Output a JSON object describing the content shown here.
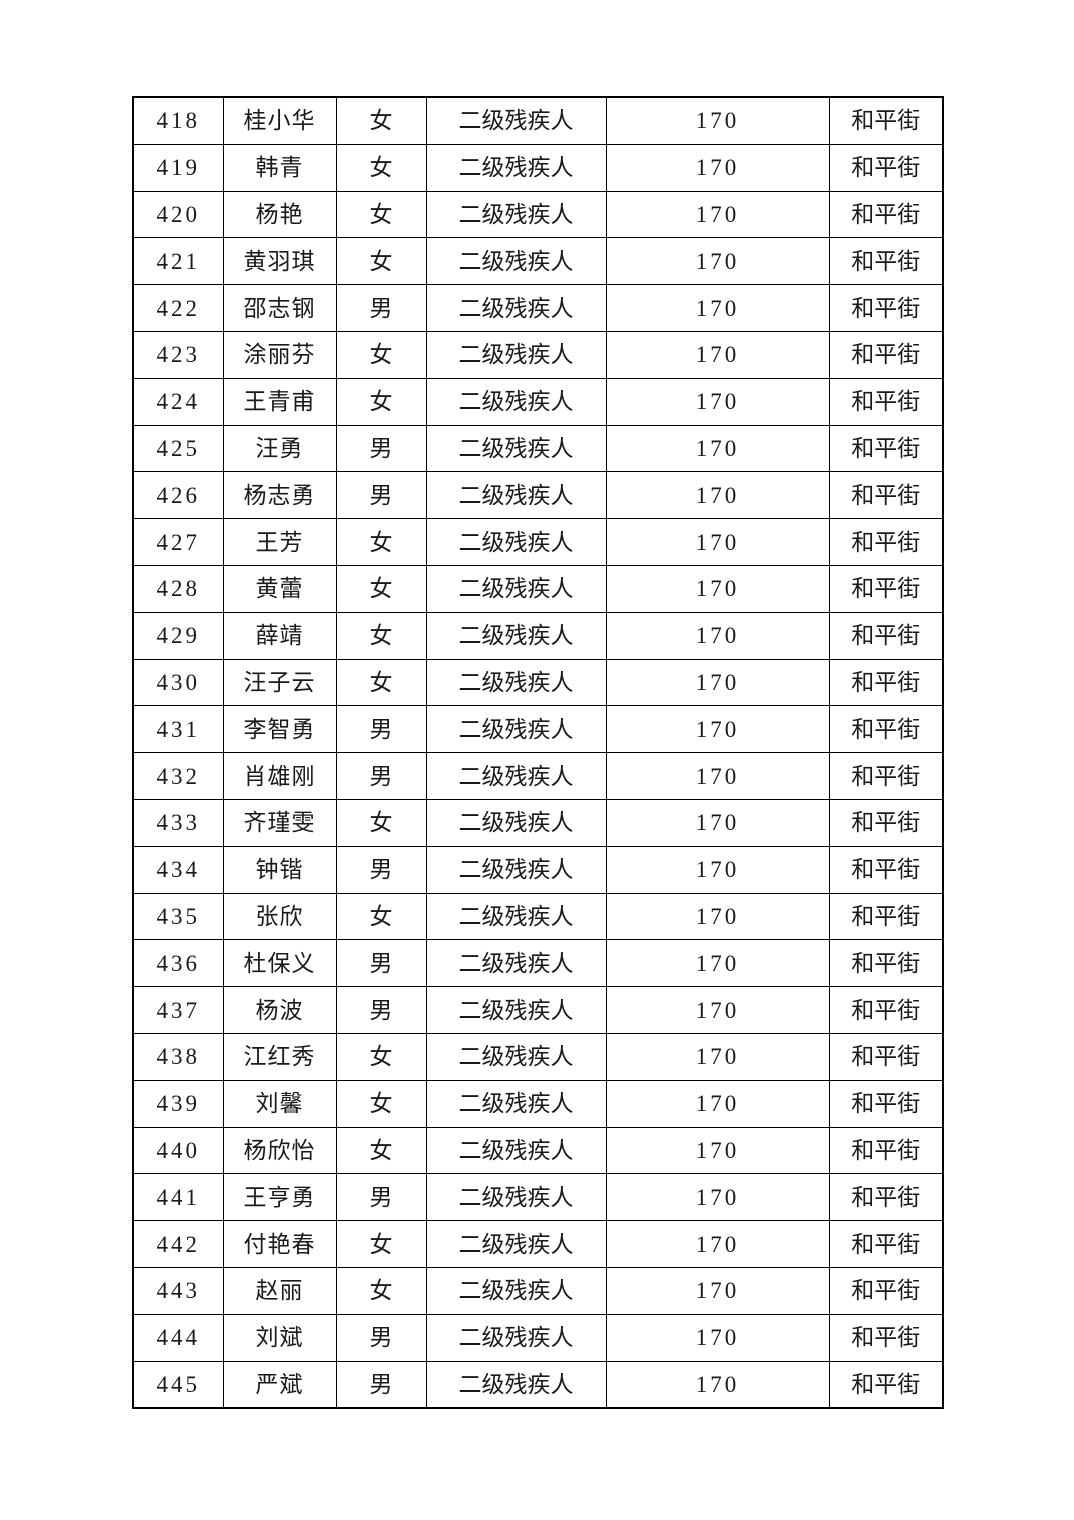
{
  "page": {
    "background_color": "#ffffff",
    "text_color": "#1a1a1a",
    "border_color": "#000000"
  },
  "table": {
    "rows": [
      {
        "no": "418",
        "name": "桂小华",
        "gender": "女",
        "category": "二级残疾人",
        "amount": "170",
        "street": "和平街"
      },
      {
        "no": "419",
        "name": "韩青",
        "gender": "女",
        "category": "二级残疾人",
        "amount": "170",
        "street": "和平街"
      },
      {
        "no": "420",
        "name": "杨艳",
        "gender": "女",
        "category": "二级残疾人",
        "amount": "170",
        "street": "和平街"
      },
      {
        "no": "421",
        "name": "黄羽琪",
        "gender": "女",
        "category": "二级残疾人",
        "amount": "170",
        "street": "和平街"
      },
      {
        "no": "422",
        "name": "邵志钢",
        "gender": "男",
        "category": "二级残疾人",
        "amount": "170",
        "street": "和平街"
      },
      {
        "no": "423",
        "name": "涂丽芬",
        "gender": "女",
        "category": "二级残疾人",
        "amount": "170",
        "street": "和平街"
      },
      {
        "no": "424",
        "name": "王青甫",
        "gender": "女",
        "category": "二级残疾人",
        "amount": "170",
        "street": "和平街"
      },
      {
        "no": "425",
        "name": "汪勇",
        "gender": "男",
        "category": "二级残疾人",
        "amount": "170",
        "street": "和平街"
      },
      {
        "no": "426",
        "name": "杨志勇",
        "gender": "男",
        "category": "二级残疾人",
        "amount": "170",
        "street": "和平街"
      },
      {
        "no": "427",
        "name": "王芳",
        "gender": "女",
        "category": "二级残疾人",
        "amount": "170",
        "street": "和平街"
      },
      {
        "no": "428",
        "name": "黄蕾",
        "gender": "女",
        "category": "二级残疾人",
        "amount": "170",
        "street": "和平街"
      },
      {
        "no": "429",
        "name": "薛靖",
        "gender": "女",
        "category": "二级残疾人",
        "amount": "170",
        "street": "和平街"
      },
      {
        "no": "430",
        "name": "汪子云",
        "gender": "女",
        "category": "二级残疾人",
        "amount": "170",
        "street": "和平街"
      },
      {
        "no": "431",
        "name": "李智勇",
        "gender": "男",
        "category": "二级残疾人",
        "amount": "170",
        "street": "和平街"
      },
      {
        "no": "432",
        "name": "肖雄刚",
        "gender": "男",
        "category": "二级残疾人",
        "amount": "170",
        "street": "和平街"
      },
      {
        "no": "433",
        "name": "齐瑾雯",
        "gender": "女",
        "category": "二级残疾人",
        "amount": "170",
        "street": "和平街"
      },
      {
        "no": "434",
        "name": "钟锴",
        "gender": "男",
        "category": "二级残疾人",
        "amount": "170",
        "street": "和平街"
      },
      {
        "no": "435",
        "name": "张欣",
        "gender": "女",
        "category": "二级残疾人",
        "amount": "170",
        "street": "和平街"
      },
      {
        "no": "436",
        "name": "杜保义",
        "gender": "男",
        "category": "二级残疾人",
        "amount": "170",
        "street": "和平街"
      },
      {
        "no": "437",
        "name": "杨波",
        "gender": "男",
        "category": "二级残疾人",
        "amount": "170",
        "street": "和平街"
      },
      {
        "no": "438",
        "name": "江红秀",
        "gender": "女",
        "category": "二级残疾人",
        "amount": "170",
        "street": "和平街"
      },
      {
        "no": "439",
        "name": "刘馨",
        "gender": "女",
        "category": "二级残疾人",
        "amount": "170",
        "street": "和平街"
      },
      {
        "no": "440",
        "name": "杨欣怡",
        "gender": "女",
        "category": "二级残疾人",
        "amount": "170",
        "street": "和平街"
      },
      {
        "no": "441",
        "name": "王亨勇",
        "gender": "男",
        "category": "二级残疾人",
        "amount": "170",
        "street": "和平街"
      },
      {
        "no": "442",
        "name": "付艳春",
        "gender": "女",
        "category": "二级残疾人",
        "amount": "170",
        "street": "和平街"
      },
      {
        "no": "443",
        "name": "赵丽",
        "gender": "女",
        "category": "二级残疾人",
        "amount": "170",
        "street": "和平街"
      },
      {
        "no": "444",
        "name": "刘斌",
        "gender": "男",
        "category": "二级残疾人",
        "amount": "170",
        "street": "和平街"
      },
      {
        "no": "445",
        "name": "严斌",
        "gender": "男",
        "category": "二级残疾人",
        "amount": "170",
        "street": "和平街"
      }
    ]
  }
}
